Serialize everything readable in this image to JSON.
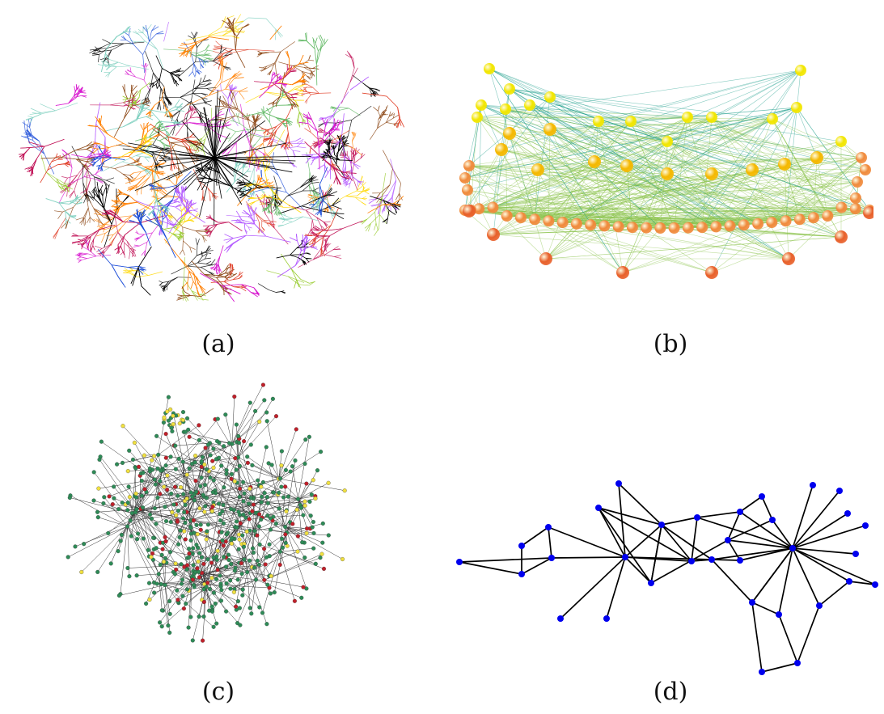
{
  "panels": [
    {
      "id": "a",
      "caption": "(a)"
    },
    {
      "id": "b",
      "caption": "(b)"
    },
    {
      "id": "c",
      "caption": "(c)"
    },
    {
      "id": "d",
      "caption": "(d)"
    }
  ],
  "colors": {
    "a_palette": [
      "#d81bd0",
      "#e0422a",
      "#9acd32",
      "#1e4fd8",
      "#ff7f00",
      "#b45cff",
      "#7fd0c0",
      "#000000",
      "#c2185b",
      "#8b4513",
      "#ffd700",
      "#66bb6a"
    ],
    "b_node_top": "#f2e600",
    "b_node_mid": "#f5b800",
    "b_node_low": "#f08a3c",
    "b_node_bottom": "#e8602a",
    "b_edge_teal": "#1f9e8c",
    "b_edge_green": "#8bc34a",
    "c_green": "#2e8b57",
    "c_red": "#c0202a",
    "c_yellow": "#f0e040",
    "c_edge": "#333333",
    "d_node": "#0000ee",
    "d_edge": "#000000"
  }
}
